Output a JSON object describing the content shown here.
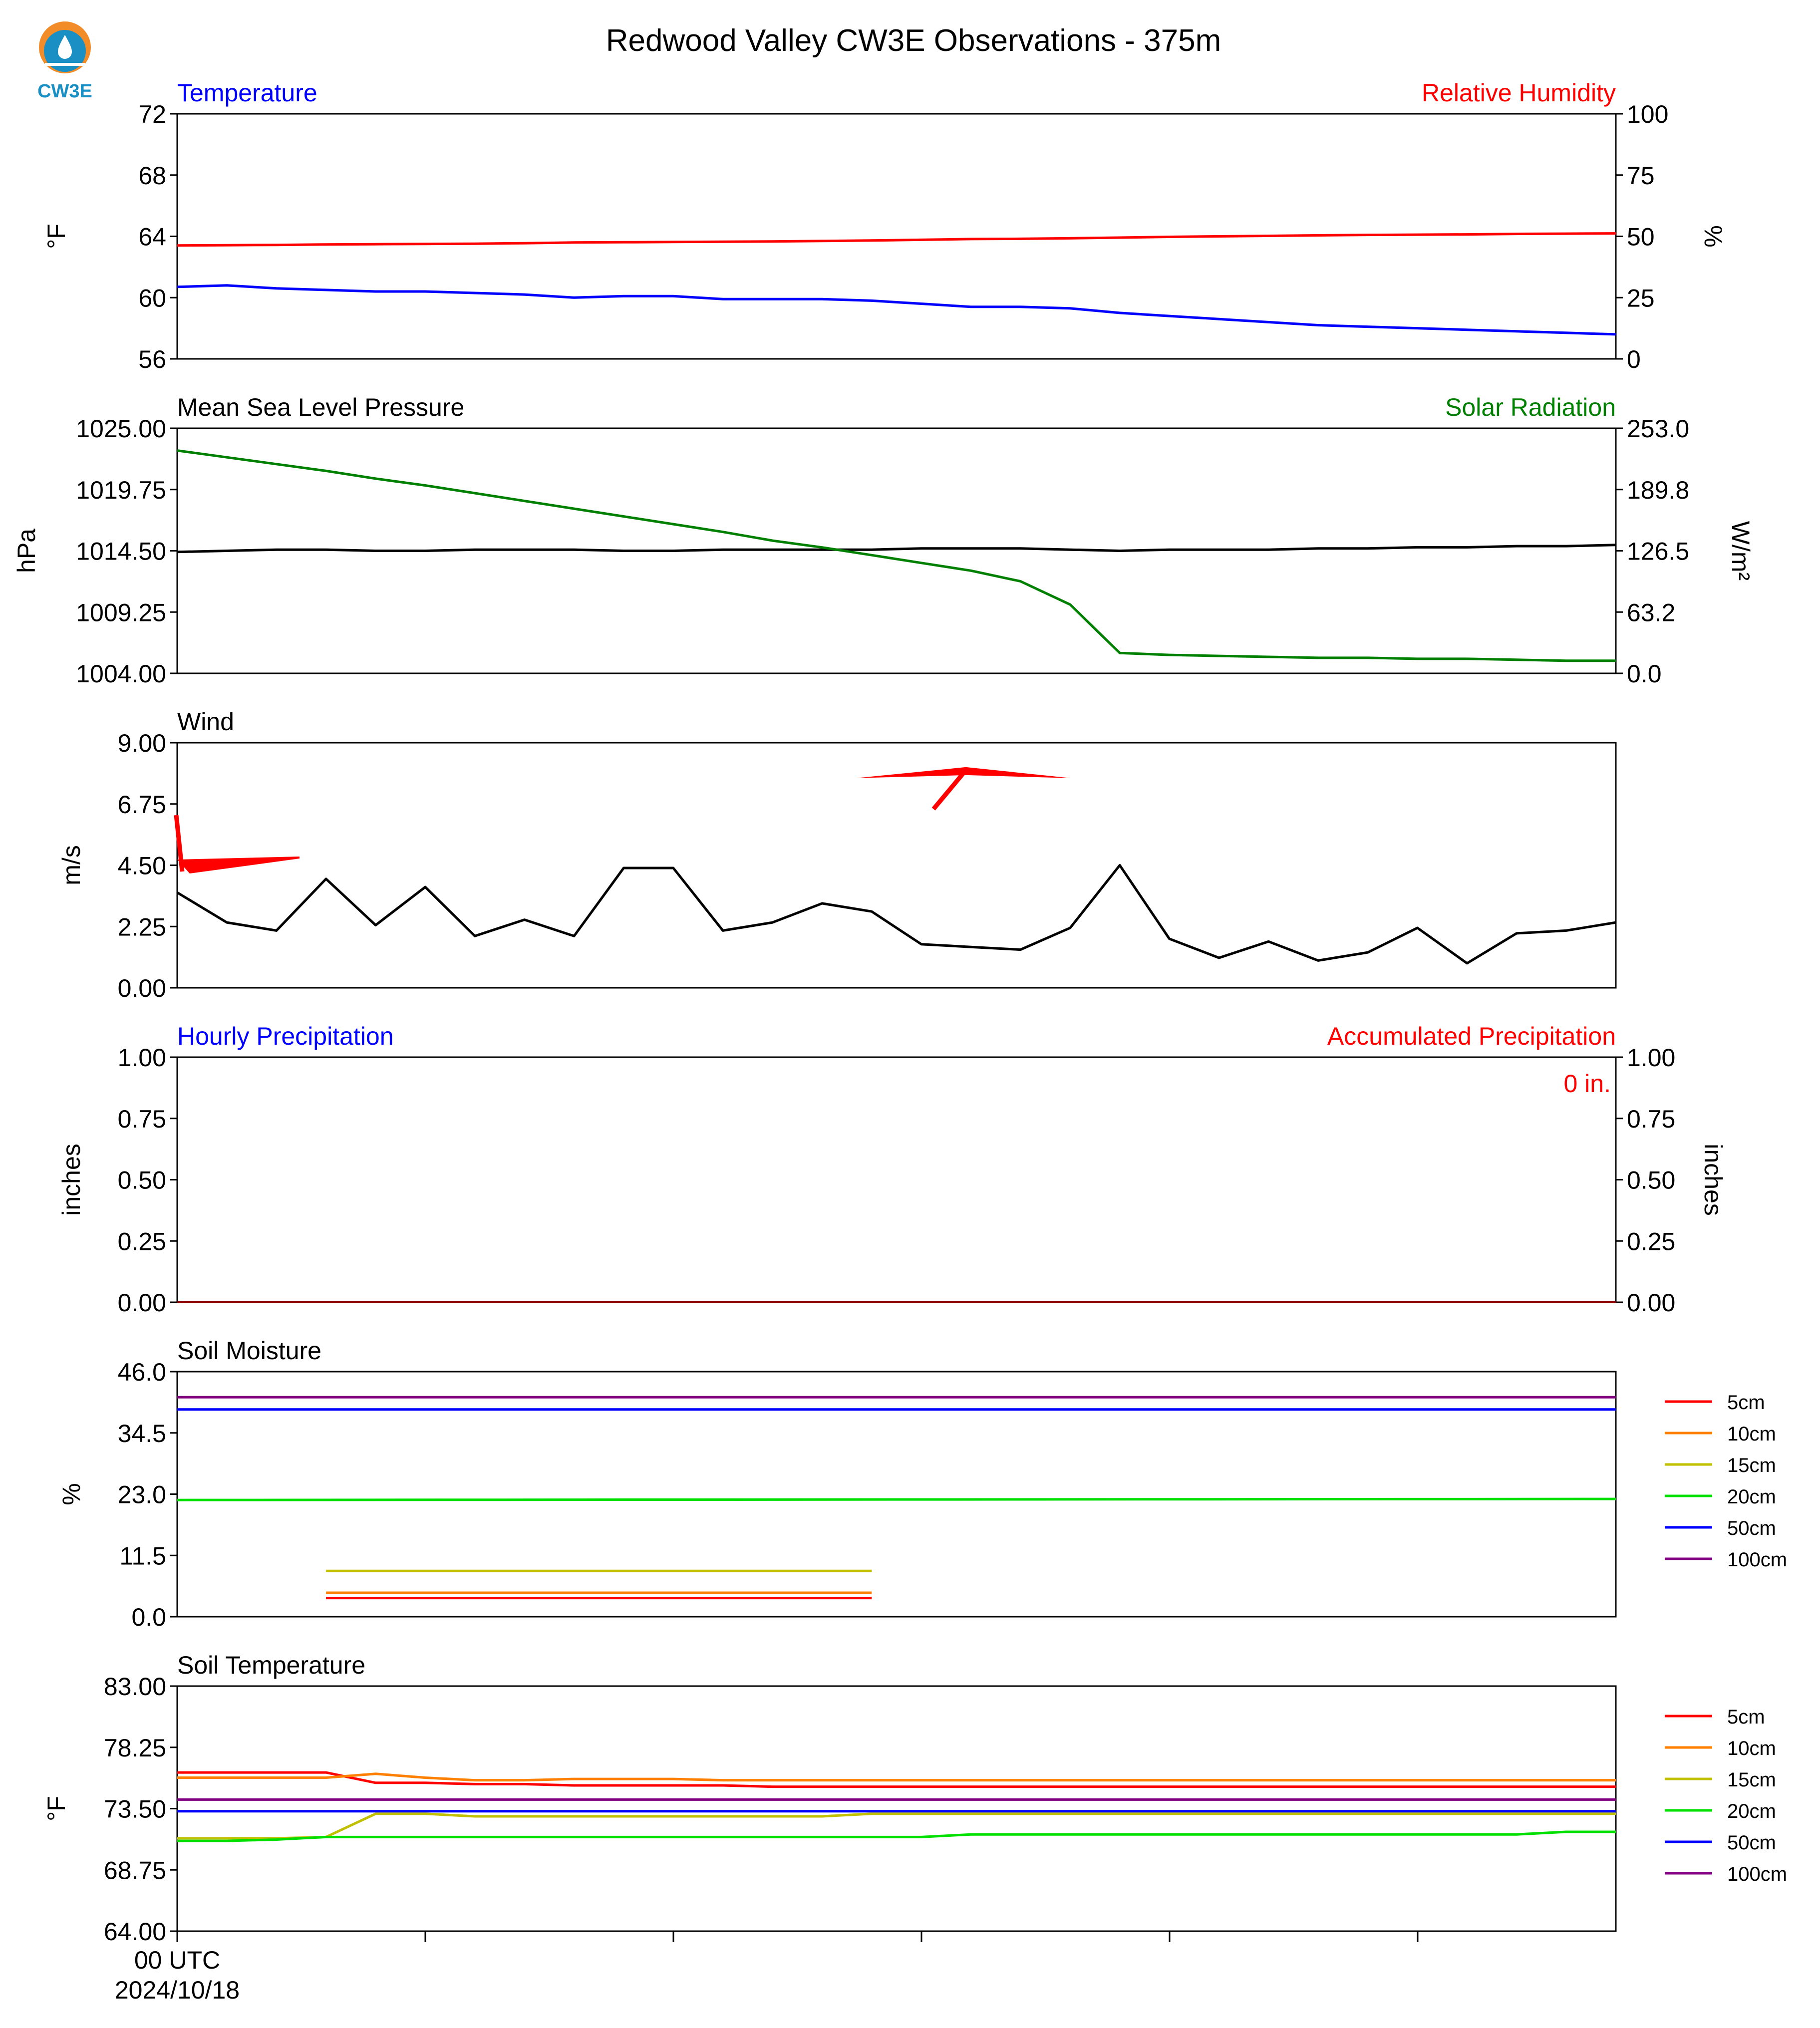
{
  "title": "Redwood Valley CW3E Observations - 375m",
  "logo_text": "CW3E",
  "x_tick_label": [
    "00 UTC",
    "2024/10/18"
  ],
  "colors": {
    "temperature": "#0000ff",
    "humidity": "#ff0000",
    "pressure": "#000000",
    "solar": "#008000",
    "wind": "#000000",
    "wind_barb": "#ff0000",
    "precip_left": "#0000ff",
    "precip_right": "#ff0000",
    "5cm": "#ff0000",
    "10cm": "#ff8000",
    "15cm": "#c0c000",
    "20cm": "#00e000",
    "50cm": "#0000ff",
    "100cm": "#800080"
  },
  "panels": {
    "temp_rh": {
      "left_title": "Temperature",
      "right_title": "Relative Humidity",
      "left_ylabel": "°F",
      "right_ylabel": "%",
      "left_ticks": [
        "56",
        "60",
        "64",
        "68",
        "72"
      ],
      "right_ticks": [
        "0",
        "25",
        "50",
        "75",
        "100"
      ]
    },
    "pressure_solar": {
      "left_title": "Mean Sea Level Pressure",
      "right_title": "Solar Radiation",
      "left_ylabel": "hPa",
      "right_ylabel": "W/m²",
      "left_ticks": [
        "1004.00",
        "1009.25",
        "1014.50",
        "1019.75",
        "1025.00"
      ],
      "right_ticks": [
        "0.0",
        "63.2",
        "126.5",
        "189.8",
        "253.0"
      ]
    },
    "wind": {
      "left_title": "Wind",
      "left_ylabel": "m/s",
      "left_ticks": [
        "0.00",
        "2.25",
        "4.50",
        "6.75",
        "9.00"
      ]
    },
    "precip": {
      "left_title": "Hourly Precipitation",
      "right_title": "Accumulated Precipitation",
      "left_ylabel": "inches",
      "right_ylabel": "inches",
      "left_ticks": [
        "0.00",
        "0.25",
        "0.50",
        "0.75",
        "1.00"
      ],
      "right_ticks": [
        "0.00",
        "0.25",
        "0.50",
        "0.75",
        "1.00"
      ],
      "annotation": "0 in."
    },
    "soil_moisture": {
      "left_title": "Soil Moisture",
      "left_ylabel": "%",
      "left_ticks": [
        "0.0",
        "11.5",
        "23.0",
        "34.5",
        "46.0"
      ],
      "legend": [
        "5cm",
        "10cm",
        "15cm",
        "20cm",
        "50cm",
        "100cm"
      ]
    },
    "soil_temp": {
      "left_title": "Soil Temperature",
      "left_ylabel": "°F",
      "left_ticks": [
        "64.00",
        "68.75",
        "73.50",
        "78.25",
        "83.00"
      ],
      "legend": [
        "5cm",
        "10cm",
        "15cm",
        "20cm",
        "50cm",
        "100cm"
      ]
    }
  },
  "chart_data": [
    {
      "type": "line",
      "title": "Temperature / Relative Humidity",
      "x": [
        0,
        1,
        2,
        3,
        4,
        5,
        6,
        7,
        8,
        9,
        10,
        11,
        12,
        13,
        14,
        15,
        16,
        17,
        18,
        19,
        20,
        21,
        22,
        23,
        24,
        25,
        26,
        27,
        28,
        29
      ],
      "series": [
        {
          "name": "Temperature",
          "axis": "left",
          "ylim": [
            56,
            72
          ],
          "values": [
            60.7,
            60.8,
            60.6,
            60.5,
            60.4,
            60.4,
            60.3,
            60.2,
            60.0,
            60.1,
            60.1,
            59.9,
            59.9,
            59.9,
            59.8,
            59.6,
            59.4,
            59.4,
            59.3,
            59.0,
            58.8,
            58.6,
            58.4,
            58.2,
            58.1,
            58.0,
            57.9,
            57.8,
            57.7,
            57.6
          ]
        },
        {
          "name": "Relative Humidity",
          "axis": "right",
          "ylim": [
            0,
            100
          ],
          "values": [
            46.3,
            46.4,
            46.5,
            46.7,
            46.8,
            46.9,
            47.0,
            47.2,
            47.5,
            47.6,
            47.7,
            47.8,
            47.9,
            48.1,
            48.3,
            48.6,
            48.9,
            49.0,
            49.2,
            49.5,
            49.8,
            50.0,
            50.2,
            50.4,
            50.6,
            50.7,
            50.8,
            51.0,
            51.1,
            51.2
          ]
        }
      ]
    },
    {
      "type": "line",
      "title": "Mean Sea Level Pressure / Solar Radiation",
      "x": [
        0,
        1,
        2,
        3,
        4,
        5,
        6,
        7,
        8,
        9,
        10,
        11,
        12,
        13,
        14,
        15,
        16,
        17,
        18,
        19,
        20,
        21,
        22,
        23,
        24,
        25,
        26,
        27,
        28,
        29
      ],
      "series": [
        {
          "name": "Mean Sea Level Pressure",
          "axis": "left",
          "ylim": [
            1004,
            1025
          ],
          "values": [
            1014.4,
            1014.5,
            1014.6,
            1014.6,
            1014.5,
            1014.5,
            1014.6,
            1014.6,
            1014.6,
            1014.5,
            1014.5,
            1014.6,
            1014.6,
            1014.6,
            1014.6,
            1014.7,
            1014.7,
            1014.7,
            1014.6,
            1014.5,
            1014.6,
            1014.6,
            1014.6,
            1014.7,
            1014.7,
            1014.8,
            1014.8,
            1014.9,
            1014.9,
            1015.0
          ]
        },
        {
          "name": "Solar Radiation",
          "axis": "right",
          "ylim": [
            0,
            253
          ],
          "values": [
            230,
            223,
            216,
            209,
            201,
            194,
            186,
            178,
            170,
            162,
            154,
            146,
            137,
            130,
            122,
            114,
            106,
            95,
            71,
            21,
            19,
            18,
            17,
            16,
            16,
            15,
            15,
            14,
            13,
            13
          ]
        }
      ]
    },
    {
      "type": "line",
      "title": "Wind",
      "x": [
        0,
        1,
        2,
        3,
        4,
        5,
        6,
        7,
        8,
        9,
        10,
        11,
        12,
        13,
        14,
        15,
        16,
        17,
        18,
        19,
        20,
        21,
        22,
        23,
        24,
        25,
        26,
        27,
        28,
        29
      ],
      "ylim": [
        0,
        9
      ],
      "series": [
        {
          "name": "Wind",
          "values": [
            3.5,
            2.4,
            2.1,
            4.0,
            2.3,
            3.7,
            1.9,
            2.5,
            1.9,
            4.4,
            4.4,
            2.1,
            2.4,
            3.1,
            2.8,
            1.6,
            1.5,
            1.4,
            2.2,
            4.5,
            1.8,
            1.1,
            1.7,
            1.0,
            1.3,
            2.2,
            0.9,
            2.0,
            2.1,
            2.4
          ]
        }
      ],
      "barbs": [
        {
          "x": 0,
          "y": 4.6,
          "direction": "east",
          "barbs": 1
        },
        {
          "x": 15,
          "y": 7.7,
          "direction": "west-east",
          "barbs": 1
        }
      ]
    },
    {
      "type": "line",
      "title": "Hourly / Accumulated Precipitation",
      "x": [
        0,
        29
      ],
      "ylim": [
        0,
        1
      ],
      "series": [
        {
          "name": "Hourly Precipitation",
          "values": [
            0,
            0
          ]
        },
        {
          "name": "Accumulated Precipitation",
          "values": [
            0,
            0
          ]
        }
      ]
    },
    {
      "type": "line",
      "title": "Soil Moisture",
      "ylim": [
        0,
        46
      ],
      "series": [
        {
          "name": "5cm",
          "x": [
            3,
            14
          ],
          "values": [
            3.5,
            3.5
          ]
        },
        {
          "name": "10cm",
          "x": [
            3,
            14
          ],
          "values": [
            4.5,
            4.5
          ]
        },
        {
          "name": "15cm",
          "x": [
            3,
            14
          ],
          "values": [
            8.6,
            8.6
          ]
        },
        {
          "name": "20cm",
          "x": [
            0,
            29
          ],
          "values": [
            21.9,
            22.1
          ]
        },
        {
          "name": "50cm",
          "x": [
            0,
            29
          ],
          "values": [
            38.9,
            38.9
          ]
        },
        {
          "name": "100cm",
          "x": [
            0,
            29
          ],
          "values": [
            41.2,
            41.2
          ]
        }
      ]
    },
    {
      "type": "line",
      "title": "Soil Temperature",
      "ylim": [
        64,
        83
      ],
      "series": [
        {
          "name": "5cm",
          "x": [
            0,
            1,
            2,
            3,
            4,
            5,
            6,
            7,
            8,
            9,
            10,
            11,
            12,
            13,
            14,
            29
          ],
          "values": [
            76.3,
            76.3,
            76.3,
            76.3,
            75.5,
            75.5,
            75.4,
            75.4,
            75.3,
            75.3,
            75.3,
            75.3,
            75.2,
            75.2,
            75.2,
            75.2
          ]
        },
        {
          "name": "10cm",
          "x": [
            0,
            1,
            2,
            3,
            4,
            5,
            6,
            7,
            8,
            9,
            10,
            11,
            12,
            13,
            14,
            29
          ],
          "values": [
            75.9,
            75.9,
            75.9,
            75.9,
            76.2,
            75.9,
            75.7,
            75.7,
            75.8,
            75.8,
            75.8,
            75.7,
            75.7,
            75.7,
            75.7,
            75.7
          ]
        },
        {
          "name": "15cm",
          "x": [
            0,
            1,
            2,
            3,
            4,
            5,
            6,
            7,
            8,
            9,
            10,
            11,
            12,
            13,
            14,
            29
          ],
          "values": [
            71.2,
            71.2,
            71.2,
            71.3,
            73.1,
            73.1,
            72.9,
            72.9,
            72.9,
            72.9,
            72.9,
            72.9,
            72.9,
            72.9,
            73.1,
            73.1
          ]
        },
        {
          "name": "20cm",
          "x": [
            0,
            1,
            2,
            3,
            4,
            5,
            6,
            7,
            8,
            9,
            10,
            11,
            12,
            13,
            14,
            15,
            16,
            17,
            18,
            19,
            20,
            21,
            22,
            23,
            24,
            25,
            26,
            27,
            28,
            29
          ],
          "values": [
            71.0,
            71.0,
            71.1,
            71.3,
            71.3,
            71.3,
            71.3,
            71.3,
            71.3,
            71.3,
            71.3,
            71.3,
            71.3,
            71.3,
            71.3,
            71.3,
            71.5,
            71.5,
            71.5,
            71.5,
            71.5,
            71.5,
            71.5,
            71.5,
            71.5,
            71.5,
            71.5,
            71.5,
            71.7,
            71.7
          ]
        },
        {
          "name": "50cm",
          "x": [
            0,
            29
          ],
          "values": [
            73.3,
            73.3
          ]
        },
        {
          "name": "100cm",
          "x": [
            0,
            29
          ],
          "values": [
            74.2,
            74.2
          ]
        }
      ]
    }
  ]
}
